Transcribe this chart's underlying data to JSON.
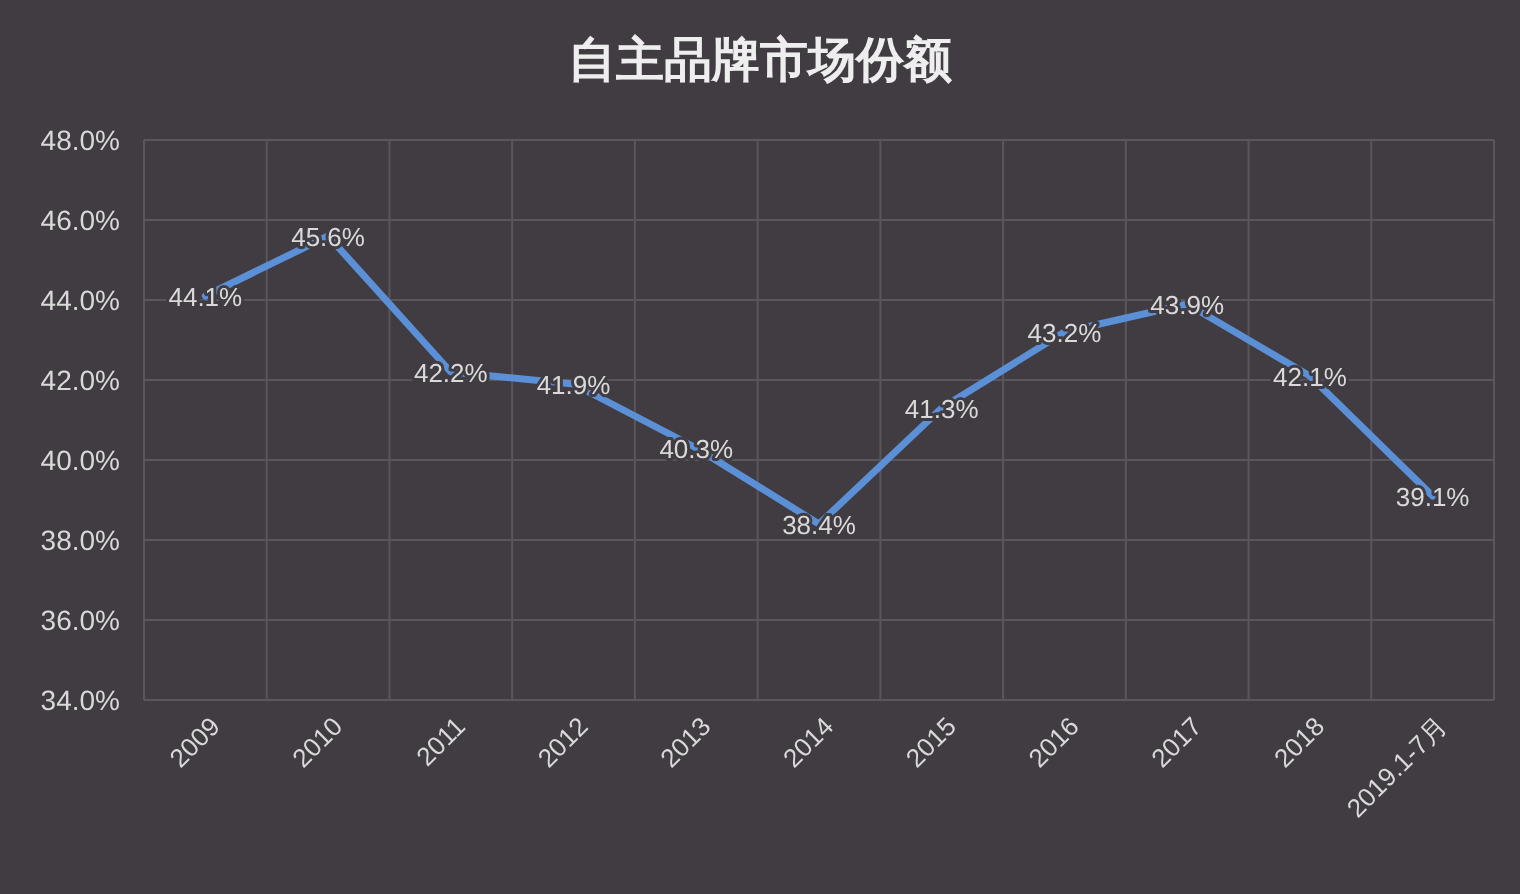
{
  "chart_data": {
    "type": "line",
    "title": "自主品牌市场份额",
    "categories": [
      "2009",
      "2010",
      "2011",
      "2012",
      "2013",
      "2014",
      "2015",
      "2016",
      "2017",
      "2018",
      "2019.1-7月"
    ],
    "series": [
      {
        "color": "#5b8fd6",
        "values": [
          44.1,
          45.6,
          42.2,
          41.9,
          40.3,
          38.4,
          41.3,
          43.2,
          43.9,
          42.1,
          39.1
        ],
        "value_labels": [
          "44.1%",
          "45.6%",
          "42.2%",
          "41.9%",
          "40.3%",
          "38.4%",
          "41.3%",
          "43.2%",
          "43.9%",
          "42.1%",
          "39.1%"
        ]
      }
    ],
    "ylim": [
      34,
      48
    ],
    "yticks": [
      {
        "value": 34,
        "label": "34.0%"
      },
      {
        "value": 36,
        "label": "36.0%"
      },
      {
        "value": 38,
        "label": "38.0%"
      },
      {
        "value": 40,
        "label": "40.0%"
      },
      {
        "value": 42,
        "label": "42.0%"
      },
      {
        "value": 44,
        "label": "44.0%"
      },
      {
        "value": 46,
        "label": "46.0%"
      },
      {
        "value": 48,
        "label": "48.0%"
      }
    ],
    "grid": true,
    "marker": "none",
    "line_style": "solid"
  }
}
